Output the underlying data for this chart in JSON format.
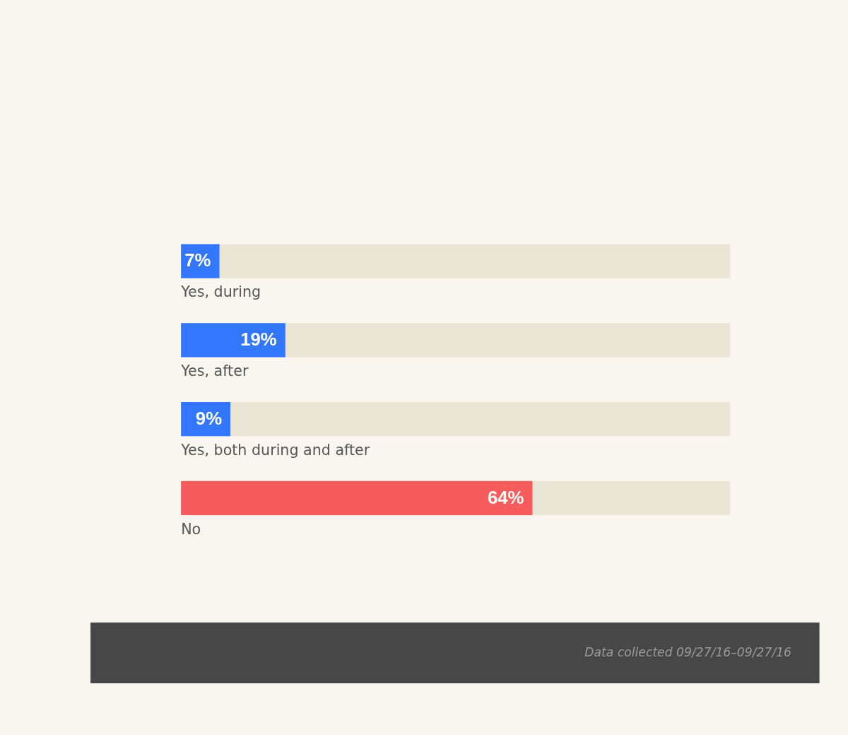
{
  "chart_data": {
    "type": "bar",
    "orientation": "horizontal",
    "categories": [
      "Yes, during",
      "Yes, after",
      "Yes, both during and after",
      "No"
    ],
    "values": [
      7,
      19,
      9,
      64
    ],
    "colors": [
      "#3377ff",
      "#3377ff",
      "#3377ff",
      "#f75c5c"
    ],
    "value_labels": [
      "7%",
      "19%",
      "9%",
      "64%"
    ],
    "xlim": [
      0,
      100
    ],
    "tick_labels": false,
    "annotations": [
      "Data collected 09/27/16–09/27/16"
    ]
  }
}
